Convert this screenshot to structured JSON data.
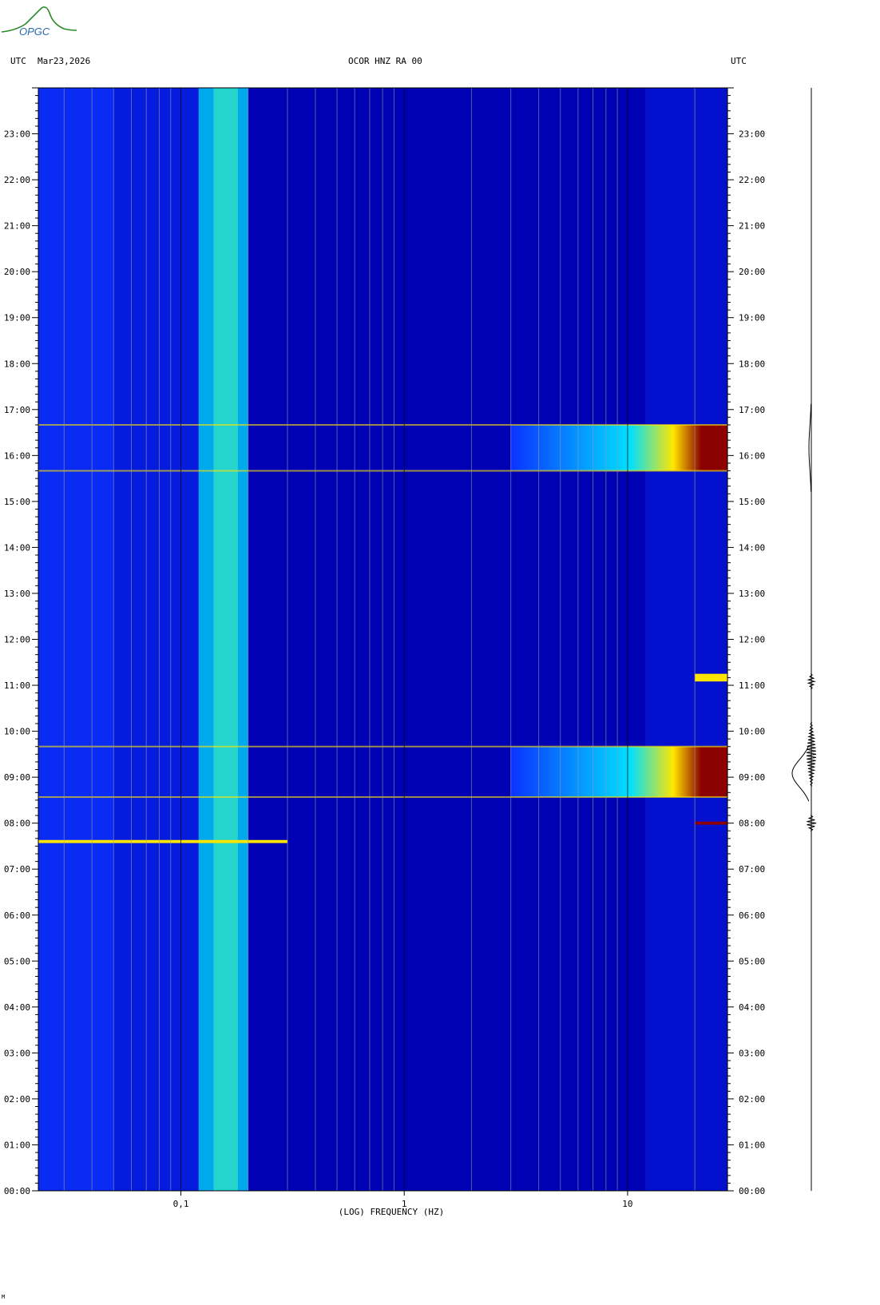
{
  "header": {
    "left_tz": "UTC",
    "date": "Mar23,2026",
    "station": "OCOR HNZ RA 00",
    "right_tz": "UTC"
  },
  "logo": {
    "icon": "opgc-logo-icon",
    "text": "OPGC"
  },
  "footer_mark": "M",
  "colors": {
    "background": "#0000b4",
    "low": "#0a32ff",
    "mid": "#00e0ff",
    "high": "#ffe600",
    "max": "#8b0000"
  },
  "chart_data": {
    "type": "heatmap",
    "title": "OCOR HNZ RA 00",
    "xlabel": "(LOG) FREQUENCY (HZ)",
    "ylabel": "UTC",
    "x_scale": "log",
    "xlim": [
      0.023,
      28
    ],
    "x_ticks": [
      {
        "value": 0.1,
        "label": "0,1"
      },
      {
        "value": 1,
        "label": "1"
      },
      {
        "value": 10,
        "label": "10"
      }
    ],
    "ylim": [
      "00:00",
      "24:00"
    ],
    "y_ticks": [
      "00:00",
      "01:00",
      "02:00",
      "03:00",
      "04:00",
      "05:00",
      "06:00",
      "07:00",
      "08:00",
      "09:00",
      "10:00",
      "11:00",
      "12:00",
      "13:00",
      "14:00",
      "15:00",
      "16:00",
      "17:00",
      "18:00",
      "19:00",
      "20:00",
      "21:00",
      "22:00",
      "23:00"
    ],
    "microseism_band_hz": [
      0.12,
      0.2
    ],
    "events": [
      {
        "start": "15:40",
        "end": "16:40",
        "freq_hz_above": 3,
        "intensity": "high"
      },
      {
        "start": "08:34",
        "end": "09:40",
        "freq_hz_above": 3,
        "intensity": "high"
      },
      {
        "start": "07:34",
        "end": "07:38",
        "freq_hz_above": 0.023,
        "intensity": "medium"
      },
      {
        "start": "07:58",
        "end": "08:02",
        "freq_hz_above": 20,
        "intensity": "high"
      },
      {
        "start": "11:05",
        "end": "11:15",
        "freq_hz_above": 20,
        "intensity": "medium"
      }
    ]
  }
}
